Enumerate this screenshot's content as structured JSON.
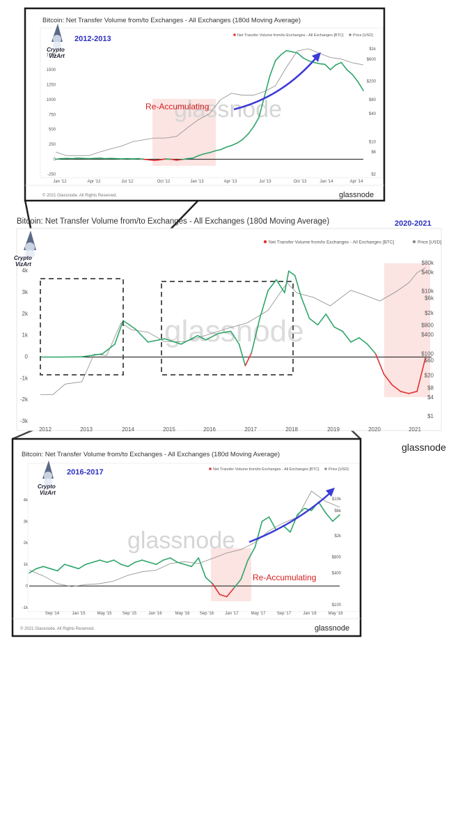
{
  "colors": {
    "net_positive": "#2ea56a",
    "net_negative": "#e03131",
    "price": "#8a8a8a",
    "annotation_arrow": "#3b3bd6",
    "highlight": "#fbe4e2",
    "period_label": "#2a2fbf",
    "annotation_text": "#d61f1f"
  },
  "icons": [
    "wizard-logo-icon",
    "legend-dot-icon"
  ],
  "branding": {
    "logo_line1": "Crypto",
    "logo_line2": "VizArt",
    "brand": "glassnode",
    "watermark": "glassnode",
    "copyright": "© 2021 Glassnode. All Rights Reserved."
  },
  "chart_data": [
    {
      "type": "line",
      "title": "Bitcoin: Net Transfer Volume from/to Exchanges - All Exchanges (180d Moving Average)",
      "period_label": "2012-2013",
      "annotation": "Re-Accumulating",
      "legend": [
        "Net Transfer Volume from/to Exchanges - All Exchanges [BTC]",
        "Price [USD]"
      ],
      "x_ticks": [
        "Jan '12",
        "Apr '12",
        "Jul '12",
        "Oct '12",
        "Jan '13",
        "Apr '13",
        "Jul '13",
        "Oct '13",
        "Jan '14",
        "Apr '14"
      ],
      "y_ticks_left": [
        "-250",
        "0",
        "250",
        "500",
        "750",
        "1000",
        "1250",
        "1500",
        "1750"
      ],
      "y_ticks_right": [
        "$1k",
        "$600",
        "$200",
        "$80",
        "$40",
        "$10",
        "$6",
        "$2"
      ],
      "ylim": [
        -250,
        1850
      ],
      "series": [
        {
          "name": "Net Transfer Volume from/to Exchanges - All Exchanges [BTC]",
          "x": [
            0,
            0.5,
            1,
            1.5,
            2,
            2.5,
            3,
            3.5,
            4,
            4.5,
            5,
            5.5,
            6,
            6.5,
            7,
            7.5,
            8,
            8.5,
            9,
            9.5,
            10,
            10.5,
            11,
            11.5,
            12,
            12.5,
            13,
            13.5,
            14,
            14.5,
            15,
            15.5,
            16,
            16.5,
            17,
            17.5,
            18,
            18.5,
            19,
            19.5,
            20,
            20.5,
            21,
            21.5,
            22,
            22.5,
            23,
            23.5,
            24,
            24.5,
            25,
            25.5,
            26,
            26.5,
            27,
            27.5,
            28
          ],
          "values": [
            0,
            10,
            15,
            10,
            20,
            15,
            10,
            15,
            20,
            10,
            15,
            10,
            5,
            10,
            5,
            10,
            0,
            -10,
            -20,
            -10,
            5,
            0,
            -15,
            -5,
            10,
            20,
            60,
            90,
            110,
            140,
            160,
            200,
            230,
            270,
            330,
            420,
            540,
            700,
            1050,
            1400,
            1650,
            1750,
            1820,
            1800,
            1780,
            1700,
            1650,
            1620,
            1600,
            1590,
            1500,
            1580,
            1620,
            1500,
            1420,
            1300,
            1150
          ]
        },
        {
          "name": "Price [USD]",
          "x": [
            0,
            1,
            2,
            3,
            4,
            5,
            6,
            7,
            8,
            9,
            10,
            11,
            12,
            13,
            14,
            15,
            16,
            17,
            18,
            19,
            20,
            21,
            22,
            23,
            24,
            25,
            26,
            27,
            28
          ],
          "values": [
            6,
            5,
            5,
            5,
            6,
            7,
            8,
            10,
            11,
            12,
            12,
            13,
            20,
            30,
            40,
            80,
            110,
            100,
            100,
            120,
            160,
            400,
            900,
            1000,
            800,
            650,
            600,
            500,
            450
          ]
        }
      ]
    },
    {
      "type": "line",
      "title": "Bitcoin: Net Transfer Volume from/to Exchanges - All Exchanges (180d Moving Average)",
      "period_label": "2020-2021",
      "legend": [
        "Net Transfer Volume from/to Exchanges - All Exchanges [BTC]",
        "Price [USD]"
      ],
      "x_ticks": [
        "2012",
        "2013",
        "2014",
        "2015",
        "2016",
        "2017",
        "2018",
        "2019",
        "2020",
        "2021"
      ],
      "y_ticks_left": [
        "-3k",
        "-2k",
        "-1k",
        "0",
        "1k",
        "2k",
        "3k",
        "4k"
      ],
      "y_ticks_right": [
        "$80k",
        "$40k",
        "$10k",
        "$6k",
        "$2k",
        "$800",
        "$400",
        "$100",
        "$60",
        "$20",
        "$8",
        "$4",
        "$1"
      ],
      "ylim": [
        -3000,
        4300
      ],
      "series": [
        {
          "name": "Net Transfer Volume from/to Exchanges - All Exchanges [BTC]",
          "x": [
            2012,
            2012.5,
            2013,
            2013.5,
            2013.8,
            2014,
            2014.3,
            2014.6,
            2015,
            2015.4,
            2015.8,
            2016,
            2016.3,
            2016.6,
            2016.8,
            2016.95,
            2017.1,
            2017.3,
            2017.5,
            2017.7,
            2017.9,
            2018.0,
            2018.15,
            2018.3,
            2018.5,
            2018.7,
            2018.9,
            2019.1,
            2019.3,
            2019.5,
            2019.7,
            2019.9,
            2020.1,
            2020.3,
            2020.5,
            2020.7,
            2020.9,
            2021.1,
            2021.3
          ],
          "values": [
            0,
            0,
            10,
            150,
            600,
            1700,
            1300,
            700,
            850,
            600,
            1000,
            800,
            1100,
            1200,
            600,
            -400,
            200,
            1800,
            3100,
            3600,
            3000,
            4000,
            3800,
            2800,
            1800,
            1500,
            2000,
            1400,
            1200,
            700,
            900,
            600,
            150,
            -800,
            -1300,
            -1600,
            -1700,
            -1600,
            -50
          ]
        },
        {
          "name": "Price [USD]",
          "x": [
            2012,
            2012.3,
            2012.6,
            2013,
            2013.3,
            2013.6,
            2013.95,
            2014.2,
            2014.6,
            2015,
            2015.5,
            2016,
            2016.5,
            2017,
            2017.5,
            2017.96,
            2018.2,
            2018.6,
            2019,
            2019.5,
            2019.8,
            2020.2,
            2020.6,
            2020.9,
            2021.1,
            2021.3
          ],
          "values": [
            5,
            5,
            11,
            13,
            100,
            90,
            1000,
            600,
            500,
            250,
            250,
            400,
            650,
            1000,
            2500,
            19000,
            9000,
            6500,
            3500,
            11000,
            8000,
            5000,
            10000,
            19000,
            40000,
            58000
          ]
        }
      ]
    },
    {
      "type": "line",
      "title": "Bitcoin: Net Transfer Volume from/to Exchanges - All Exchanges (180d Moving Average)",
      "period_label": "2016-2017",
      "annotation": "Re-Accumulating",
      "legend": [
        "Net Transfer Volume from/to Exchanges - All Exchanges [BTC]",
        "Price [USD]"
      ],
      "x_ticks": [
        "Sep '14",
        "Jan '15",
        "May '15",
        "Sep '15",
        "Jan '16",
        "May '16",
        "Sep '16",
        "Jan '17",
        "May '17",
        "Sep '17",
        "Jan '18",
        "May '18"
      ],
      "y_ticks_left": [
        "-1k",
        "0",
        "1k",
        "2k",
        "3k",
        "4k"
      ],
      "y_ticks_right": [
        "$10k",
        "$6k",
        "$2k",
        "$800",
        "$400",
        "$100"
      ],
      "ylim": [
        -1000,
        4400
      ],
      "series": [
        {
          "name": "Net Transfer Volume from/to Exchanges - All Exchanges [BTC]",
          "x": [
            0,
            1,
            2,
            3,
            4,
            5,
            6,
            7,
            8,
            9,
            10,
            11,
            12,
            13,
            14,
            15,
            16,
            17,
            18,
            19,
            20,
            21,
            22,
            23,
            24,
            25,
            26,
            27,
            28,
            29,
            30,
            31,
            32,
            33,
            34,
            35,
            36,
            37,
            38,
            39,
            40,
            41,
            42,
            43,
            44
          ],
          "values": [
            600,
            800,
            900,
            800,
            700,
            1000,
            900,
            800,
            1000,
            1100,
            1200,
            1100,
            1200,
            1000,
            900,
            1100,
            1200,
            1100,
            1000,
            1200,
            1300,
            1100,
            1000,
            900,
            1300,
            400,
            100,
            -400,
            -500,
            -100,
            300,
            1200,
            1800,
            3000,
            3200,
            2600,
            2800,
            2500,
            3300,
            3600,
            3500,
            3900,
            3400,
            3000,
            3300
          ]
        },
        {
          "name": "Price [USD]",
          "x": [
            0,
            2,
            4,
            6,
            8,
            10,
            12,
            14,
            16,
            18,
            20,
            22,
            24,
            26,
            28,
            30,
            32,
            34,
            36,
            38,
            40,
            42,
            44
          ],
          "values": [
            450,
            350,
            250,
            220,
            240,
            250,
            280,
            360,
            420,
            450,
            600,
            650,
            600,
            750,
            950,
            1100,
            1500,
            2500,
            3500,
            4500,
            14000,
            9000,
            7000
          ]
        }
      ]
    }
  ]
}
